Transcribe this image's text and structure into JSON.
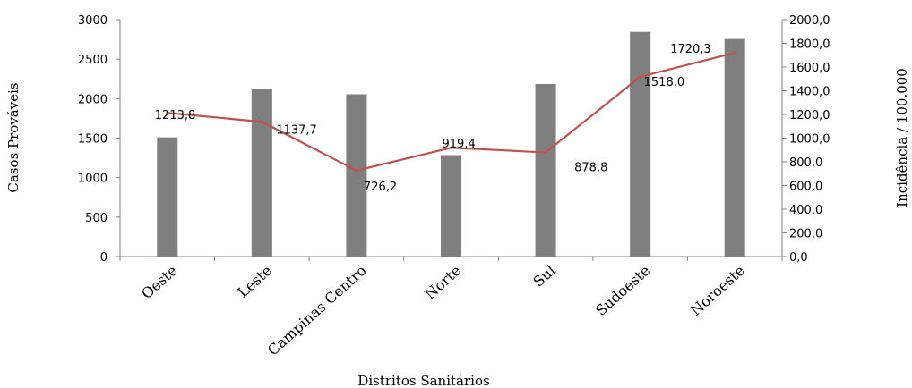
{
  "chart_data": {
    "type": "bar+line",
    "categories": [
      "Oeste",
      "Leste",
      "Campinas Centro",
      "Norte",
      "Sul",
      "Sudoeste",
      "Noroeste"
    ],
    "series": [
      {
        "type": "bar",
        "axis": "left",
        "values": [
          1510,
          2120,
          2055,
          1285,
          2185,
          2845,
          2755
        ],
        "color": "#7f7f7f"
      },
      {
        "type": "line",
        "axis": "right",
        "values": [
          1213.8,
          1137.7,
          726.2,
          919.4,
          878.8,
          1518.0,
          1720.3
        ],
        "labels": [
          "1213,8",
          "1137,7",
          "726,2",
          "919,4",
          "878,8",
          "1518,0",
          "1720,3"
        ],
        "color": "#c0504d"
      }
    ],
    "xlabel": "Distritos Sanitários",
    "ylabel": "Casos Prováveis",
    "y2label": "Incidência / 100.000",
    "ylim": [
      0,
      3000
    ],
    "y2lim": [
      0,
      2000
    ],
    "yticks": [
      "0",
      "500",
      "1000",
      "1500",
      "2000",
      "2500",
      "3000"
    ],
    "y2ticks": [
      "0,0",
      "200,0",
      "400,0",
      "600,0",
      "800,0",
      "1000,0",
      "1200,0",
      "1400,0",
      "1600,0",
      "1800,0",
      "2000,0"
    ],
    "grid": false,
    "legend": "none"
  }
}
